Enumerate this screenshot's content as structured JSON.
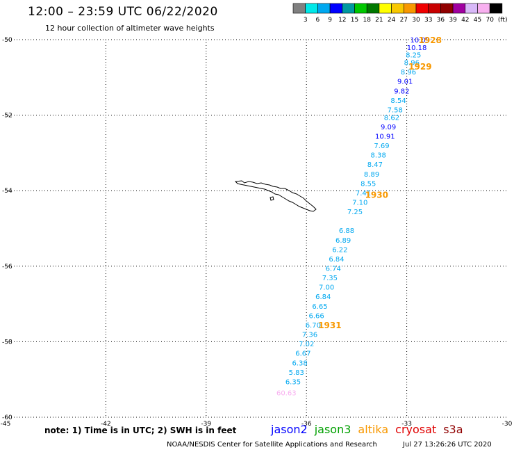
{
  "header": {
    "title": "12:00 – 23:59 UTC 06/22/2020",
    "subtitle": "12 hour collection of altimeter wave heights"
  },
  "colorbar": {
    "unit": "(ft)",
    "labels": [
      "3",
      "6",
      "9",
      "12",
      "15",
      "18",
      "21",
      "24",
      "27",
      "30",
      "33",
      "36",
      "39",
      "42",
      "45",
      "70"
    ],
    "colors": [
      "#808080",
      "#00e8e8",
      "#00a8f0",
      "#0000ff",
      "#0098a0",
      "#00c800",
      "#007800",
      "#ffff00",
      "#f8c800",
      "#f89800",
      "#f00000",
      "#c80000",
      "#900000",
      "#a000a0",
      "#d8b8f8",
      "#f8b0f0",
      "#000000"
    ]
  },
  "footer": {
    "note": "note:  1) Time is in UTC;  2) SWH is in feet",
    "satellites": [
      {
        "name": "jason2",
        "color": "#0000ff"
      },
      {
        "name": "jason3",
        "color": "#00a000"
      },
      {
        "name": "altika",
        "color": "#f89800"
      },
      {
        "name": "cryosat",
        "color": "#e00000"
      },
      {
        "name": "s3a",
        "color": "#900000"
      }
    ],
    "credit": "NOAA/NESDIS Center for Satellite Applications and Research",
    "timestamp": "Jul 27 13:26:26 UTC 2020"
  },
  "chart_data": {
    "type": "scatter",
    "title": "12:00 – 23:59 UTC 06/22/2020",
    "subtitle": "12 hour collection of altimeter wave heights",
    "xlim": [
      -45,
      -30
    ],
    "ylim": [
      -60,
      -50
    ],
    "x_ticks": [
      -45,
      -42,
      -39,
      -36,
      -33,
      -30
    ],
    "x_tick_labels": [
      "-45",
      "-42",
      "-39",
      "-36",
      "-33",
      "-30"
    ],
    "y_ticks": [
      -50,
      -52,
      -54,
      -56,
      -58,
      -60
    ],
    "y_tick_labels": [
      "-50",
      "-52",
      "-54",
      "-56",
      "-58",
      "-60"
    ],
    "grid": true,
    "points": [
      {
        "label": "10.09",
        "lon": -32.6,
        "lat": -50.0,
        "color": "#0000ff"
      },
      {
        "label": "10.18",
        "lon": -32.7,
        "lat": -50.2,
        "color": "#0000ff"
      },
      {
        "label": "8.25",
        "lon": -32.8,
        "lat": -50.4,
        "color": "#00a8f0"
      },
      {
        "label": "8.96",
        "lon": -32.85,
        "lat": -50.6,
        "color": "#00a8f0"
      },
      {
        "label": "8.96",
        "lon": -32.95,
        "lat": -50.85,
        "color": "#00a8f0"
      },
      {
        "label": "9.01",
        "lon": -33.05,
        "lat": -51.1,
        "color": "#0000ff"
      },
      {
        "label": "9.82",
        "lon": -33.15,
        "lat": -51.35,
        "color": "#0000ff"
      },
      {
        "label": "8.54",
        "lon": -33.25,
        "lat": -51.6,
        "color": "#00a8f0"
      },
      {
        "label": "7.58",
        "lon": -33.35,
        "lat": -51.85,
        "color": "#00a8f0"
      },
      {
        "label": "8.62",
        "lon": -33.45,
        "lat": -52.05,
        "color": "#00a8f0"
      },
      {
        "label": "9.09",
        "lon": -33.55,
        "lat": -52.3,
        "color": "#0000ff"
      },
      {
        "label": "10.91",
        "lon": -33.65,
        "lat": -52.55,
        "color": "#0000ff"
      },
      {
        "label": "7.69",
        "lon": -33.75,
        "lat": -52.8,
        "color": "#00a8f0"
      },
      {
        "label": "8.38",
        "lon": -33.85,
        "lat": -53.05,
        "color": "#00a8f0"
      },
      {
        "label": "8.47",
        "lon": -33.95,
        "lat": -53.3,
        "color": "#00a8f0"
      },
      {
        "label": "8.89",
        "lon": -34.05,
        "lat": -53.55,
        "color": "#00a8f0"
      },
      {
        "label": "8.55",
        "lon": -34.15,
        "lat": -53.8,
        "color": "#00a8f0"
      },
      {
        "label": "7.41",
        "lon": -34.3,
        "lat": -54.05,
        "color": "#00a8f0"
      },
      {
        "label": "7.10",
        "lon": -34.4,
        "lat": -54.3,
        "color": "#00a8f0"
      },
      {
        "label": "7.25",
        "lon": -34.55,
        "lat": -54.55,
        "color": "#00a8f0"
      },
      {
        "label": "6.88",
        "lon": -34.8,
        "lat": -55.05,
        "color": "#00a8f0"
      },
      {
        "label": "6.89",
        "lon": -34.9,
        "lat": -55.3,
        "color": "#00a8f0"
      },
      {
        "label": "6.22",
        "lon": -35.0,
        "lat": -55.55,
        "color": "#00a8f0"
      },
      {
        "label": "6.84",
        "lon": -35.1,
        "lat": -55.8,
        "color": "#00a8f0"
      },
      {
        "label": "6.74",
        "lon": -35.2,
        "lat": -56.05,
        "color": "#00a8f0"
      },
      {
        "label": "7.35",
        "lon": -35.3,
        "lat": -56.3,
        "color": "#00a8f0"
      },
      {
        "label": "7.00",
        "lon": -35.4,
        "lat": -56.55,
        "color": "#00a8f0"
      },
      {
        "label": "6.84",
        "lon": -35.5,
        "lat": -56.8,
        "color": "#00a8f0"
      },
      {
        "label": "6.65",
        "lon": -35.6,
        "lat": -57.05,
        "color": "#00a8f0"
      },
      {
        "label": "6.66",
        "lon": -35.7,
        "lat": -57.3,
        "color": "#00a8f0"
      },
      {
        "label": "6.70",
        "lon": -35.8,
        "lat": -57.55,
        "color": "#00a8f0"
      },
      {
        "label": "7.36",
        "lon": -35.9,
        "lat": -57.8,
        "color": "#00a8f0"
      },
      {
        "label": "7.02",
        "lon": -36.0,
        "lat": -58.05,
        "color": "#00a8f0"
      },
      {
        "label": "6.67",
        "lon": -36.1,
        "lat": -58.3,
        "color": "#00a8f0"
      },
      {
        "label": "6.38",
        "lon": -36.2,
        "lat": -58.55,
        "color": "#00a8f0"
      },
      {
        "label": "5.83",
        "lon": -36.3,
        "lat": -58.8,
        "color": "#00a8f0"
      },
      {
        "label": "6.35",
        "lon": -36.4,
        "lat": -59.05,
        "color": "#00a8f0"
      },
      {
        "label": "60.63",
        "lon": -36.6,
        "lat": -59.35,
        "color": "#f8b0f0"
      }
    ],
    "time_labels": [
      {
        "label": "1928",
        "lon": -32.3,
        "lat": -50.0
      },
      {
        "label": "1929",
        "lon": -32.6,
        "lat": -50.7
      },
      {
        "label": "1930",
        "lon": -33.9,
        "lat": -54.1
      },
      {
        "label": "1931",
        "lon": -35.3,
        "lat": -57.55
      }
    ]
  }
}
